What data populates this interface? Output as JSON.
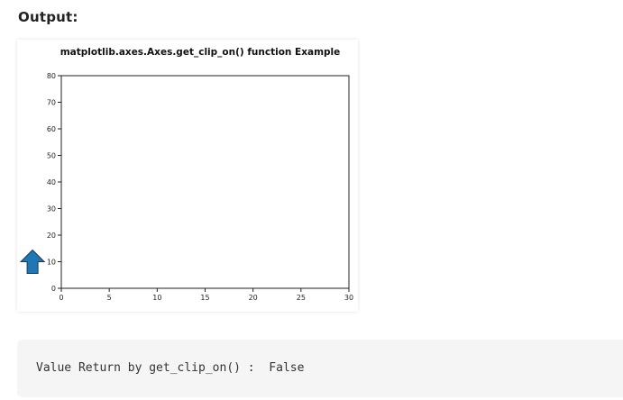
{
  "heading": "Output:",
  "chart_data": {
    "type": "line",
    "title": "matplotlib.axes.Axes.get_clip_on() function Example",
    "xlabel": "",
    "ylabel": "",
    "xlim": [
      0,
      30
    ],
    "ylim": [
      0,
      80
    ],
    "xticks": [
      0,
      5,
      10,
      15,
      20,
      25,
      30
    ],
    "yticks": [
      0,
      10,
      20,
      30,
      40,
      50,
      60,
      70,
      80
    ],
    "grid": false,
    "annotations": [
      {
        "type": "arrow",
        "direction": "up",
        "x": -3,
        "y": 10,
        "color": "#1f77b4",
        "clip_on": false
      }
    ]
  },
  "result": {
    "label": "Value Return by get_clip_on() :",
    "value": "False"
  }
}
